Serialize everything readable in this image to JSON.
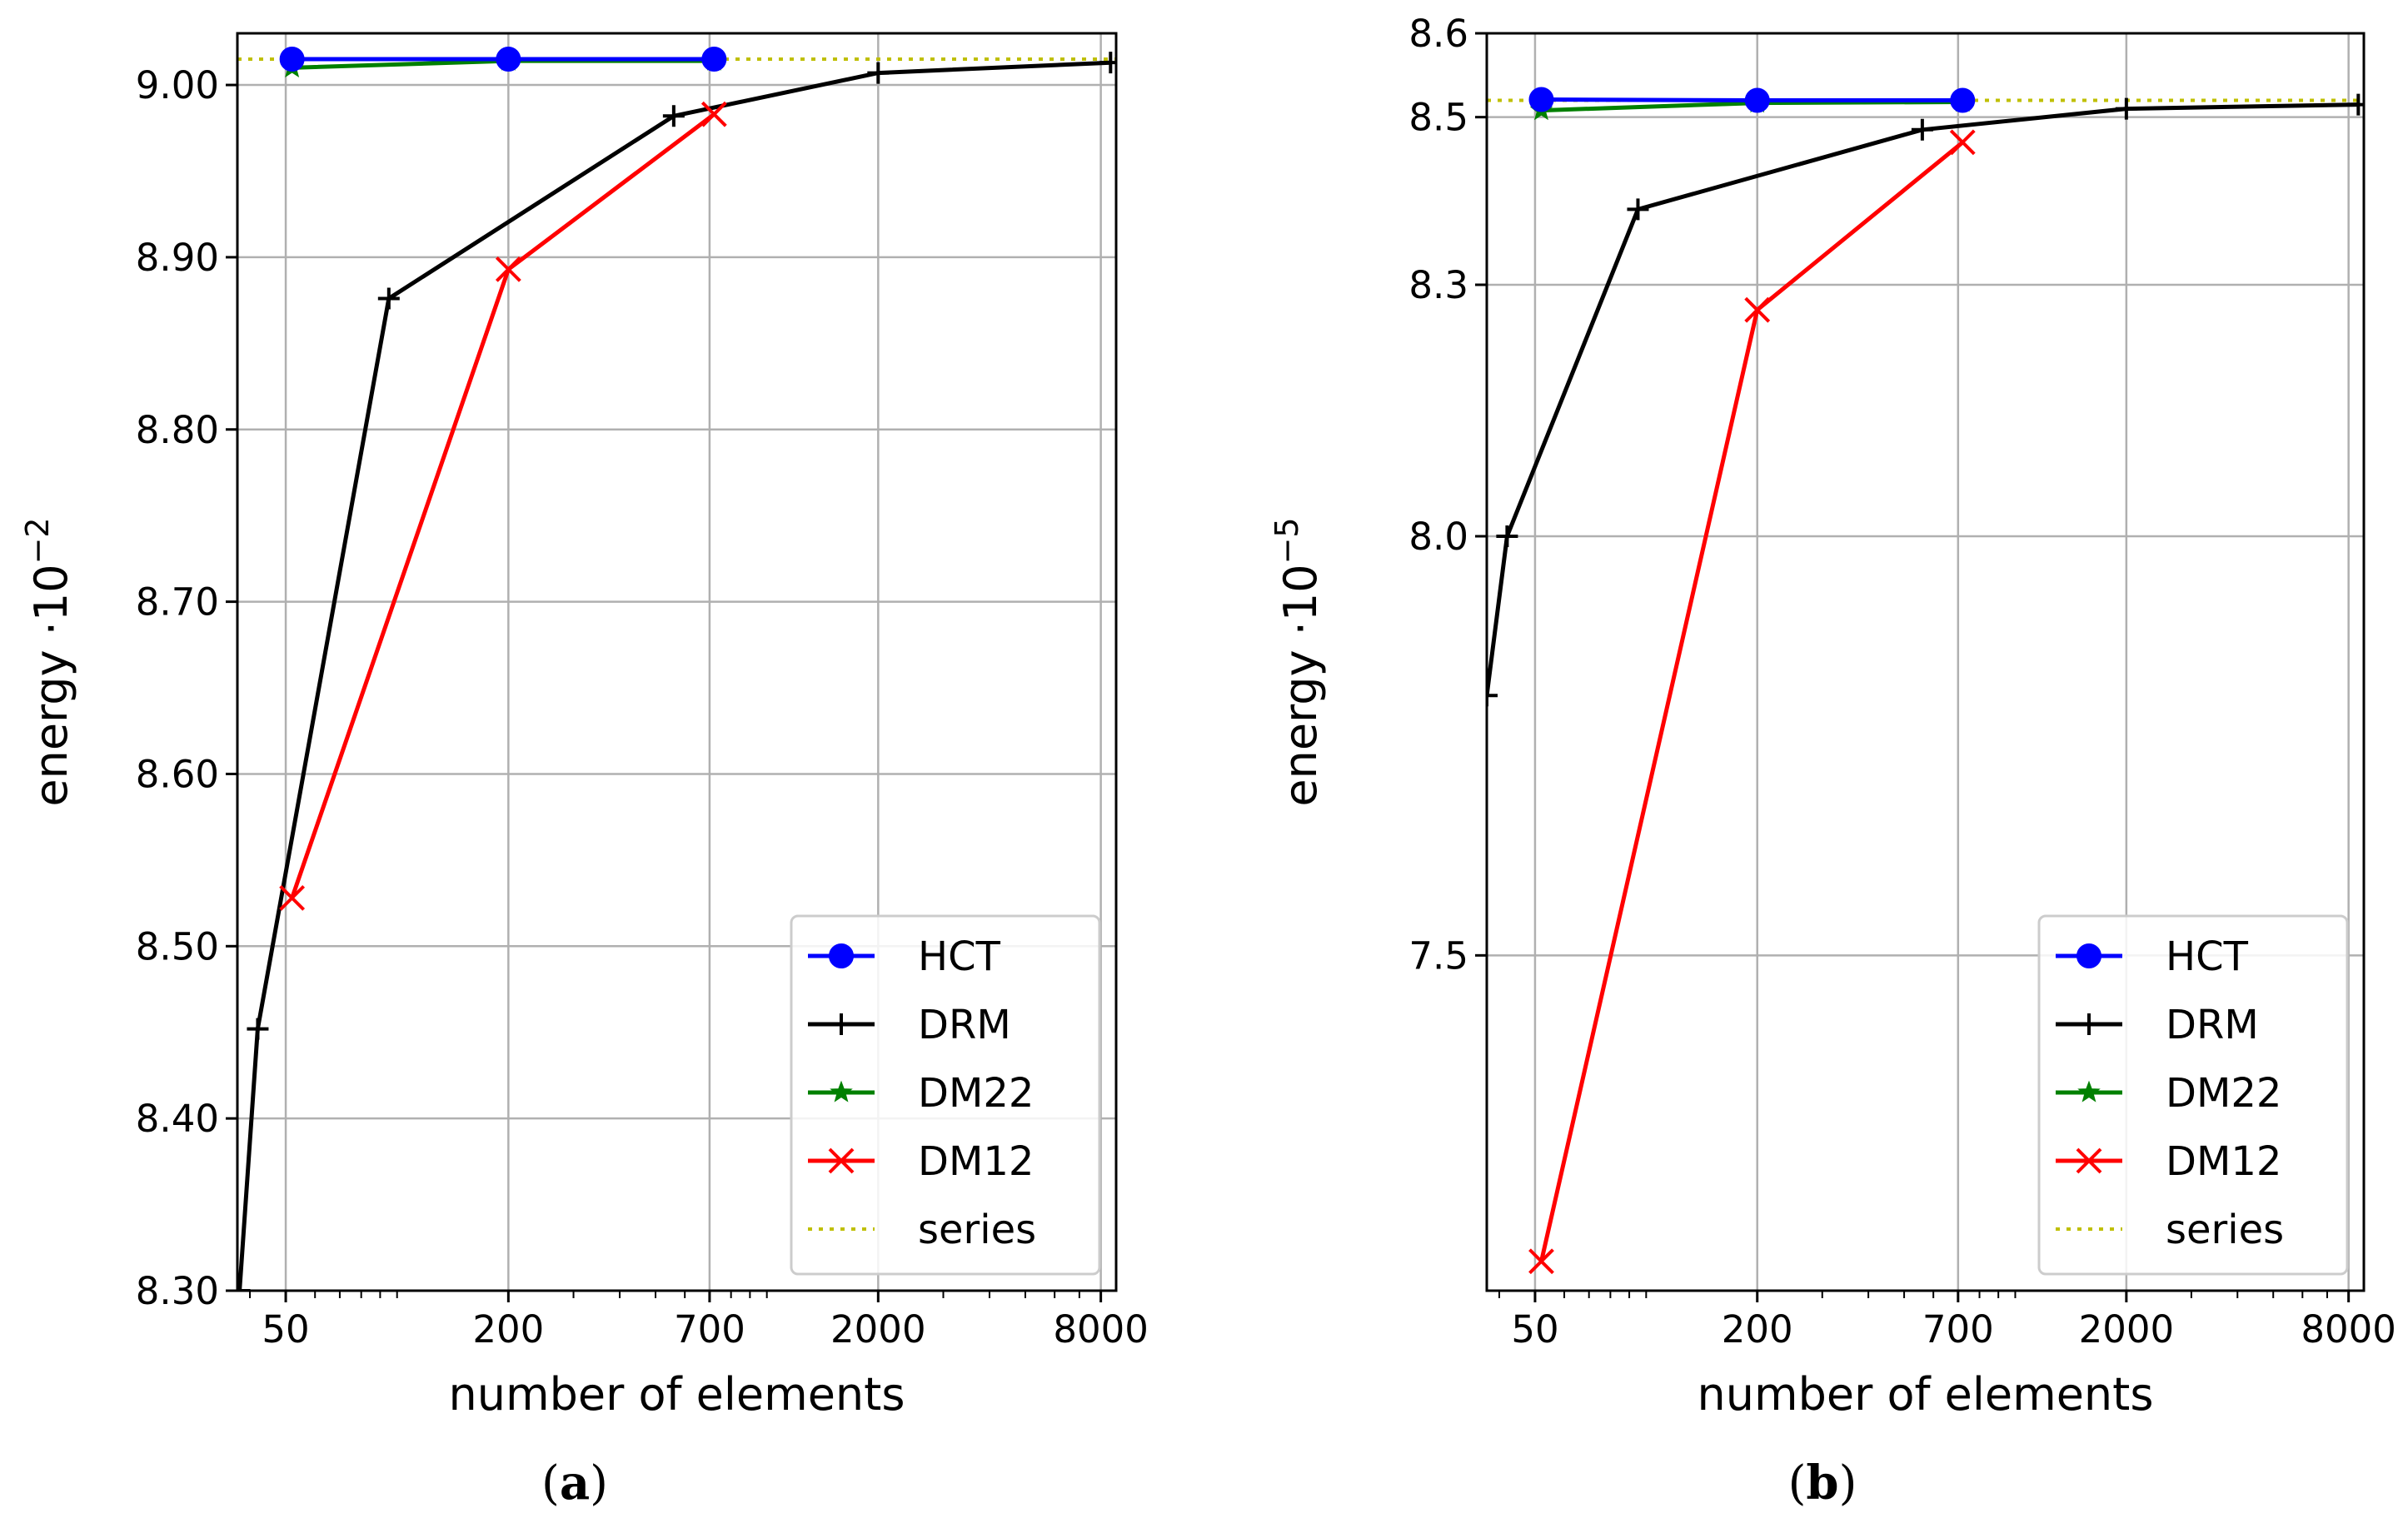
{
  "chart_data": [
    {
      "type": "line",
      "caption": {
        "open": "(",
        "letter": "a",
        "close": ")"
      },
      "xlabel": "number of elements",
      "ylabel": "energy ·10",
      "ylabel_exponent": "−2",
      "xscale": "log",
      "xlim": [
        37,
        8800
      ],
      "ylim": [
        8.3,
        9.03
      ],
      "xticks": [
        {
          "value": 50,
          "label": "50"
        },
        {
          "value": 200,
          "label": "200"
        },
        {
          "value": 700,
          "label": "700"
        },
        {
          "value": 2000,
          "label": "2000"
        },
        {
          "value": 8000,
          "label": "8000"
        }
      ],
      "yticks": [
        {
          "value": 8.3,
          "label": "8.30"
        },
        {
          "value": 8.4,
          "label": "8.40"
        },
        {
          "value": 8.5,
          "label": "8.50"
        },
        {
          "value": 8.6,
          "label": "8.60"
        },
        {
          "value": 8.7,
          "label": "8.70"
        },
        {
          "value": 8.8,
          "label": "8.80"
        },
        {
          "value": 8.9,
          "label": "8.90"
        },
        {
          "value": 9.0,
          "label": "9.00"
        }
      ],
      "grid": true,
      "legend_position": "bottom-right",
      "series": [
        {
          "name": "HCT",
          "color": "#0000ff",
          "marker": "circle",
          "x": [
            52,
            200,
            720
          ],
          "y": [
            9.015,
            9.015,
            9.015
          ]
        },
        {
          "name": "DRM",
          "color": "#000000",
          "marker": "plus",
          "x": [
            37.5,
            42,
            95,
            560,
            2000,
            8500
          ],
          "y": [
            8.3,
            8.452,
            8.876,
            8.982,
            9.007,
            9.013
          ]
        },
        {
          "name": "DM22",
          "color": "#008000",
          "marker": "star",
          "x": [
            52,
            200,
            720
          ],
          "y": [
            9.01,
            9.014,
            9.014
          ]
        },
        {
          "name": "DM12",
          "color": "#ff0000",
          "marker": "x",
          "x": [
            52,
            200,
            720
          ],
          "y": [
            8.528,
            8.893,
            8.983
          ]
        },
        {
          "name": "series",
          "color": "#bfbf00",
          "marker": "none",
          "style": "dotted",
          "x": [
            37,
            8800
          ],
          "y": [
            9.015,
            9.015
          ]
        }
      ]
    },
    {
      "type": "line",
      "caption": {
        "open": "(",
        "letter": "b",
        "close": ")"
      },
      "xlabel": "number of elements",
      "ylabel": "energy ·10",
      "ylabel_exponent": "−5",
      "xscale": "log",
      "xlim": [
        37,
        8800
      ],
      "ylim": [
        7.1,
        8.6
      ],
      "xticks": [
        {
          "value": 50,
          "label": "50"
        },
        {
          "value": 200,
          "label": "200"
        },
        {
          "value": 700,
          "label": "700"
        },
        {
          "value": 2000,
          "label": "2000"
        },
        {
          "value": 8000,
          "label": "8000"
        }
      ],
      "yticks": [
        {
          "value": 7.5,
          "label": "7.5"
        },
        {
          "value": 8.0,
          "label": "8.0"
        },
        {
          "value": 8.3,
          "label": "8.3"
        },
        {
          "value": 8.5,
          "label": "8.5"
        },
        {
          "value": 8.6,
          "label": "8.6"
        }
      ],
      "grid": true,
      "legend_position": "bottom-right",
      "series": [
        {
          "name": "HCT",
          "color": "#0000ff",
          "marker": "circle",
          "x": [
            52,
            200,
            720
          ],
          "y": [
            8.521,
            8.52,
            8.52
          ]
        },
        {
          "name": "DRM",
          "color": "#000000",
          "marker": "plus",
          "x": [
            37,
            42,
            95,
            560,
            2000,
            8500
          ],
          "y": [
            7.81,
            8.0,
            8.39,
            8.485,
            8.51,
            8.515
          ]
        },
        {
          "name": "DM22",
          "color": "#008000",
          "marker": "star",
          "x": [
            52,
            200,
            720
          ],
          "y": [
            8.508,
            8.517,
            8.518
          ]
        },
        {
          "name": "DM12",
          "color": "#ff0000",
          "marker": "x",
          "x": [
            52,
            200,
            720
          ],
          "y": [
            7.135,
            8.27,
            8.47
          ]
        },
        {
          "name": "series",
          "color": "#bfbf00",
          "marker": "none",
          "style": "dotted",
          "x": [
            37,
            8800
          ],
          "y": [
            8.52,
            8.52
          ]
        }
      ]
    }
  ]
}
